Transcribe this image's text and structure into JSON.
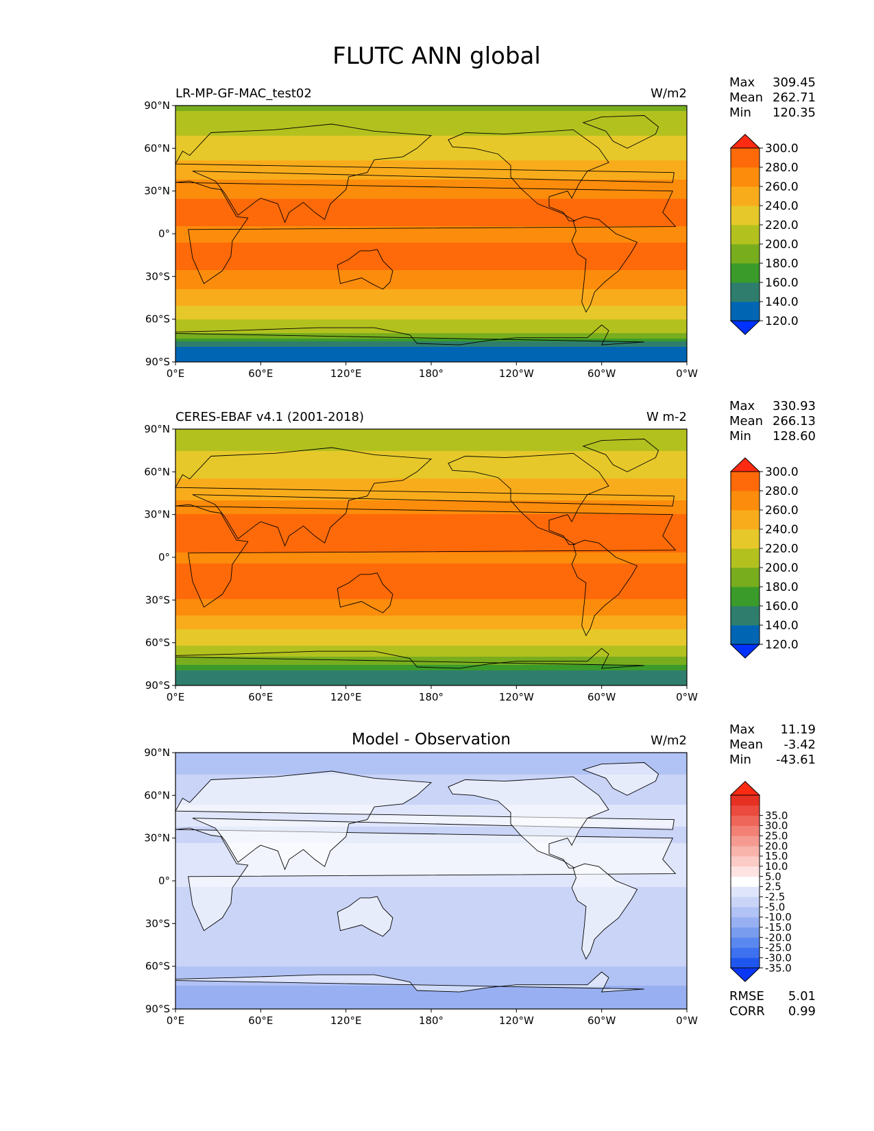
{
  "figure": {
    "title": "FLUTC ANN global"
  },
  "lat_ticks": [
    "90°N",
    "60°N",
    "30°N",
    "0°",
    "30°S",
    "60°S",
    "90°S"
  ],
  "lon_ticks": [
    "0°E",
    "60°E",
    "120°E",
    "180°",
    "120°W",
    "60°W",
    "0°W"
  ],
  "stat_labels": {
    "max": "Max",
    "mean": "Mean",
    "min": "Min",
    "rmse": "RMSE",
    "corr": "CORR"
  },
  "colors": {
    "abs_levels": [
      "#0032ff",
      "#0066b4",
      "#2f7e6d",
      "#3a9b2a",
      "#78ad1e",
      "#b3c11f",
      "#e6c82a",
      "#f9ac1b",
      "#fc8c0c",
      "#fe6a09",
      "#ff2a12"
    ],
    "diff_levels": [
      "#0a37f5",
      "#1f57ee",
      "#3d71ef",
      "#5b88ef",
      "#7a9cef",
      "#98b0f1",
      "#b1c2f4",
      "#c9d4f7",
      "#dfe5fb",
      "#ffffff",
      "#fde4e2",
      "#fbcbc6",
      "#f8b3ab",
      "#f59a90",
      "#f28075",
      "#ee665a",
      "#ea4b3e",
      "#e53022",
      "#ff2a12"
    ],
    "land_outline": "#000000"
  },
  "chart_data": [
    {
      "type": "heatmap",
      "title": "LR-MP-GF-MAC_test02",
      "units": "W/m2",
      "stats": {
        "max": "309.45",
        "mean": "262.71",
        "min": "120.35"
      },
      "colorbar_ticks": [
        "300.0",
        "280.0",
        "260.0",
        "240.0",
        "220.0",
        "200.0",
        "180.0",
        "160.0",
        "140.0",
        "120.0"
      ],
      "colorbar_levels": [
        120,
        140,
        160,
        180,
        200,
        220,
        240,
        260,
        280,
        300
      ],
      "zonal_profile": {
        "lat": [
          90,
          75,
          60,
          45,
          30,
          15,
          0,
          -15,
          -30,
          -45,
          -60,
          -70,
          -80,
          -90
        ],
        "value": [
          196,
          214,
          231,
          248,
          276,
          289,
          275,
          288,
          276,
          250,
          222,
          200,
          138,
          130
        ]
      },
      "xlim": [
        0,
        360
      ],
      "ylim": [
        -90,
        90
      ]
    },
    {
      "type": "heatmap",
      "title": "CERES-EBAF v4.1 (2001-2018)",
      "units": "W m-2",
      "stats": {
        "max": "330.93",
        "mean": "266.13",
        "min": "128.60"
      },
      "colorbar_ticks": [
        "300.0",
        "280.0",
        "260.0",
        "240.0",
        "220.0",
        "200.0",
        "180.0",
        "160.0",
        "140.0",
        "120.0"
      ],
      "colorbar_levels": [
        120,
        140,
        160,
        180,
        200,
        220,
        240,
        260,
        280,
        300
      ],
      "zonal_profile": {
        "lat": [
          90,
          75,
          60,
          45,
          30,
          15,
          0,
          -15,
          -30,
          -45,
          -60,
          -70,
          -80,
          -90
        ],
        "value": [
          205,
          220,
          236,
          252,
          281,
          290,
          276,
          290,
          279,
          252,
          224,
          202,
          160,
          152
        ]
      },
      "xlim": [
        0,
        360
      ],
      "ylim": [
        -90,
        90
      ]
    },
    {
      "type": "heatmap",
      "title": "Model - Observation",
      "units": "W/m2",
      "stats": {
        "max": "11.19",
        "mean": "-3.42",
        "min": "-43.61"
      },
      "error_stats": {
        "rmse": "5.01",
        "corr": "0.99"
      },
      "colorbar_ticks": [
        "35.0",
        "30.0",
        "25.0",
        "20.0",
        "15.0",
        "10.0",
        "5.0",
        "2.5",
        "-2.5",
        "-5.0",
        "-10.0",
        "-15.0",
        "-20.0",
        "-25.0",
        "-30.0",
        "-35.0"
      ],
      "colorbar_levels": [
        -35,
        -30,
        -25,
        -20,
        -15,
        -10,
        -5,
        -2.5,
        2.5,
        5,
        10,
        15,
        20,
        25,
        30,
        35
      ],
      "zonal_profile": {
        "lat": [
          90,
          75,
          60,
          45,
          30,
          15,
          0,
          -15,
          -30,
          -45,
          -60,
          -70,
          -80,
          -90
        ],
        "value": [
          -7,
          -5,
          -3,
          -2,
          -3,
          -1,
          -2,
          -4,
          -5,
          -3,
          -5,
          -8,
          -14,
          -12
        ]
      },
      "xlim": [
        0,
        360
      ],
      "ylim": [
        -90,
        90
      ]
    }
  ]
}
